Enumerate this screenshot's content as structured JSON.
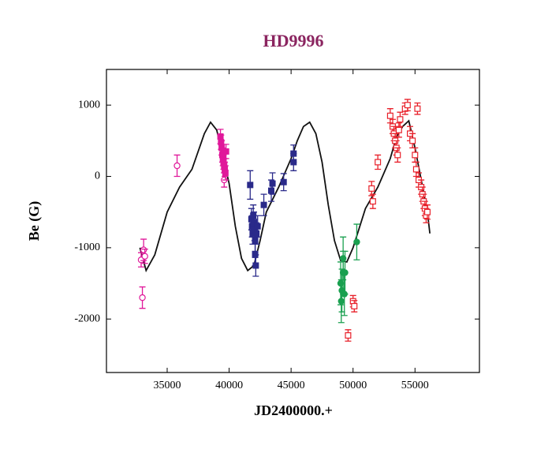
{
  "chart_data": {
    "type": "scatter",
    "title": "HD9996",
    "title_color": "#8b2560",
    "x_label": "JD2400000.+",
    "y_label": "Be (G)",
    "xlim": [
      30100,
      60200
    ],
    "ylim": [
      -2750,
      1500
    ],
    "xticks": [
      35000,
      40000,
      45000,
      50000,
      55000
    ],
    "yticks": [
      1000,
      0,
      -1000,
      -2000
    ],
    "series": [
      {
        "mode": "line",
        "color": "#111111",
        "x": [
          32800,
          33300,
          34000,
          35000,
          36000,
          37000,
          38000,
          38500,
          39000,
          40000,
          40500,
          41000,
          41500,
          42000,
          42500,
          43000,
          44000,
          45000,
          45500,
          46000,
          46500,
          47000,
          47500,
          48000,
          48500,
          49000,
          49500,
          50000,
          51000,
          52000,
          53000,
          53500,
          54000,
          54500,
          55000,
          55500,
          56000,
          56200
        ],
        "values": [
          -1000,
          -1320,
          -1100,
          -500,
          -150,
          100,
          600,
          760,
          650,
          -100,
          -700,
          -1150,
          -1320,
          -1250,
          -900,
          -500,
          -150,
          250,
          500,
          700,
          760,
          600,
          200,
          -400,
          -900,
          -1180,
          -1200,
          -1000,
          -450,
          -150,
          250,
          550,
          700,
          780,
          400,
          -50,
          -500,
          -800
        ]
      },
      {
        "mode": "markers",
        "marker": "circle",
        "filled": false,
        "color": "#e0189a",
        "x": [
          32900,
          33000,
          33100,
          33200,
          35800,
          39600
        ],
        "values": [
          -1170,
          -1700,
          -1030,
          -1120,
          150,
          -50
        ],
        "errors": [
          100,
          150,
          150,
          100,
          150,
          100
        ]
      },
      {
        "mode": "markers",
        "marker": "square",
        "filled": true,
        "color": "#e0189a",
        "x": [
          39300,
          39350,
          39400,
          39450,
          39500,
          39550,
          39600,
          39650,
          39700,
          39750
        ],
        "values": [
          560,
          480,
          400,
          300,
          250,
          200,
          150,
          100,
          50,
          350
        ],
        "errors": [
          100,
          100,
          100,
          100,
          100,
          100,
          100,
          100,
          100,
          100
        ]
      },
      {
        "mode": "markers",
        "marker": "square",
        "filled": true,
        "color": "#2a2a8a",
        "x": [
          41700,
          41800,
          41850,
          41900,
          41950,
          42000,
          42050,
          42100,
          42100,
          42150,
          42200,
          42300,
          42800,
          43400,
          43500,
          44400,
          45200,
          45200
        ],
        "values": [
          -120,
          -600,
          -700,
          -800,
          -550,
          -650,
          -750,
          -900,
          -1100,
          -1250,
          -800,
          -700,
          -400,
          -200,
          -100,
          -80,
          200,
          320
        ],
        "errors": [
          200,
          150,
          150,
          150,
          150,
          150,
          150,
          150,
          150,
          150,
          150,
          150,
          150,
          150,
          150,
          120,
          120,
          120
        ]
      },
      {
        "mode": "markers",
        "marker": "circle",
        "filled": true,
        "color": "#1aa050",
        "x": [
          49000,
          49050,
          49100,
          49200,
          49200,
          49300,
          49350,
          50300
        ],
        "values": [
          -1500,
          -1750,
          -1600,
          -1350,
          -1150,
          -1650,
          -1350,
          -920
        ],
        "errors": [
          300,
          300,
          300,
          300,
          300,
          300,
          300,
          250
        ]
      },
      {
        "mode": "markers",
        "marker": "square",
        "filled": false,
        "color": "#e8202a",
        "x": [
          49600,
          50000,
          50100,
          51500,
          51600,
          52000,
          53000,
          53200,
          53300,
          53400,
          53500,
          53600,
          53700,
          53800,
          54200,
          54400,
          54600,
          54800,
          55000,
          55100,
          55200,
          55300,
          55500,
          55600,
          55700,
          55800,
          55900,
          56000
        ],
        "values": [
          -2230,
          -1750,
          -1820,
          -170,
          -350,
          200,
          850,
          700,
          600,
          500,
          400,
          300,
          650,
          800,
          950,
          1000,
          600,
          500,
          300,
          100,
          950,
          -50,
          -150,
          -250,
          -350,
          -450,
          -550,
          -500
        ],
        "errors": [
          80,
          80,
          80,
          100,
          100,
          100,
          100,
          100,
          100,
          100,
          100,
          100,
          100,
          100,
          80,
          80,
          100,
          100,
          100,
          100,
          80,
          100,
          100,
          100,
          100,
          100,
          100,
          100
        ]
      }
    ]
  }
}
